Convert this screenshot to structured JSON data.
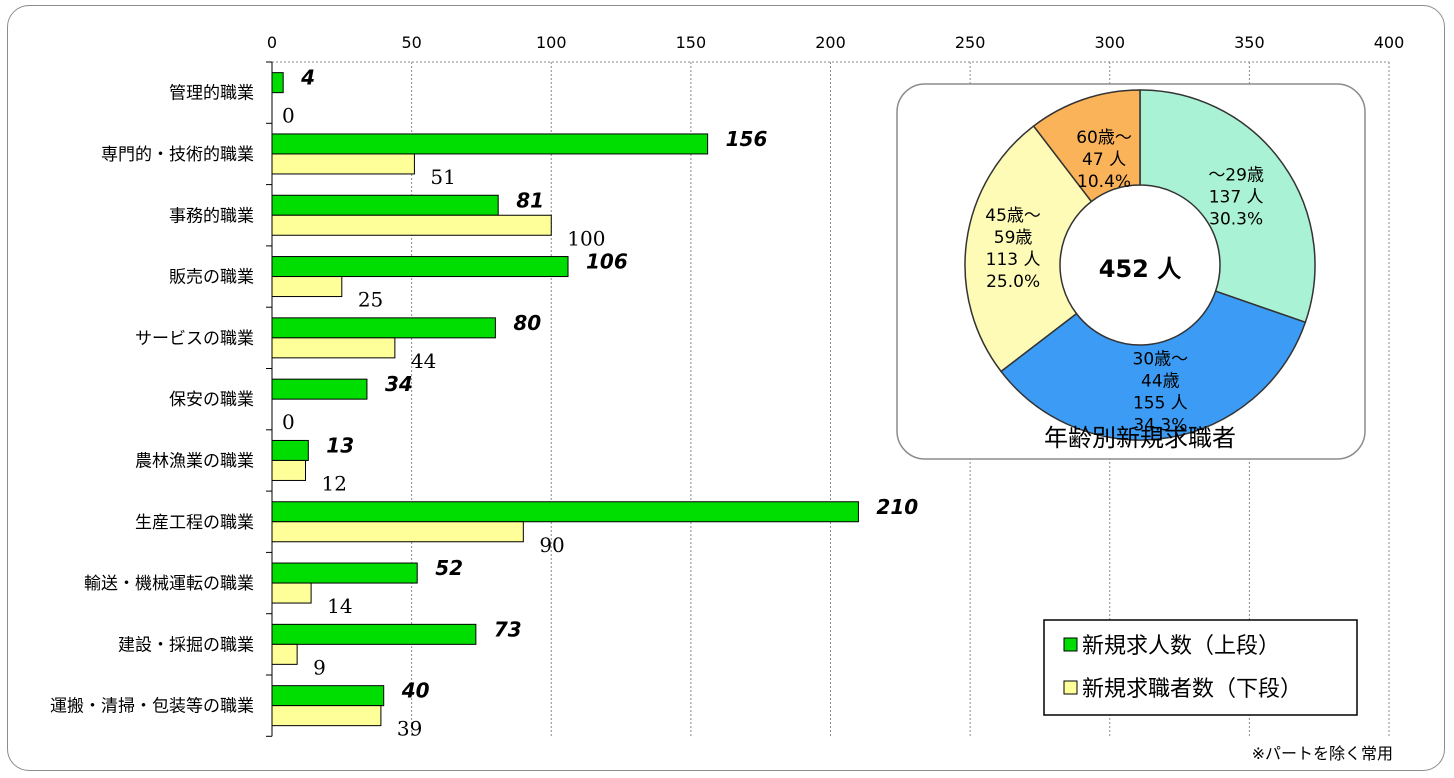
{
  "chart_data": [
    {
      "type": "bar",
      "orientation": "horizontal",
      "categories": [
        "管理的職業",
        "専門的・技術的職業",
        "事務的職業",
        "販売の職業",
        "サービスの職業",
        "保安の職業",
        "農林漁業の職業",
        "生産工程の職業",
        "輸送・機械運転の職業",
        "建設・採掘の職業",
        "運搬・清掃・包装等の職業"
      ],
      "series": [
        {
          "name": "新規求人数（上段）",
          "color": "#00dd00",
          "values": [
            4,
            156,
            81,
            106,
            80,
            34,
            13,
            210,
            52,
            73,
            40
          ]
        },
        {
          "name": "新規求職者数（下段）",
          "color": "#ffff99",
          "values": [
            0,
            51,
            100,
            25,
            44,
            0,
            12,
            90,
            14,
            9,
            39
          ]
        }
      ],
      "xlim": [
        0,
        400
      ],
      "xticks": [
        "0",
        "50",
        "100",
        "150",
        "200",
        "250",
        "300",
        "350",
        "400"
      ],
      "xaxis_position": "top",
      "grid": "vertical dotted",
      "legend_position": "bottom-right"
    },
    {
      "type": "pie",
      "variant": "donut",
      "title": "年齢別新規求職者",
      "center_label": "452 人",
      "slices": [
        {
          "group": "～29歳",
          "count": "137 人",
          "percent": "30.3%",
          "value": 137,
          "color": "#aaf2d5"
        },
        {
          "group": "30歳～44歳",
          "count": "155 人",
          "percent": "34.3%",
          "value": 155,
          "color": "#3c9cf5"
        },
        {
          "group": "45歳～59歳",
          "count": "113 人",
          "percent": "25.0%",
          "value": 113,
          "color": "#fdfbb5"
        },
        {
          "group": "60歳～",
          "count": "47 人",
          "percent": "10.4%",
          "value": 47,
          "color": "#fbb359"
        }
      ]
    }
  ],
  "footnote": "※パートを除く常用"
}
